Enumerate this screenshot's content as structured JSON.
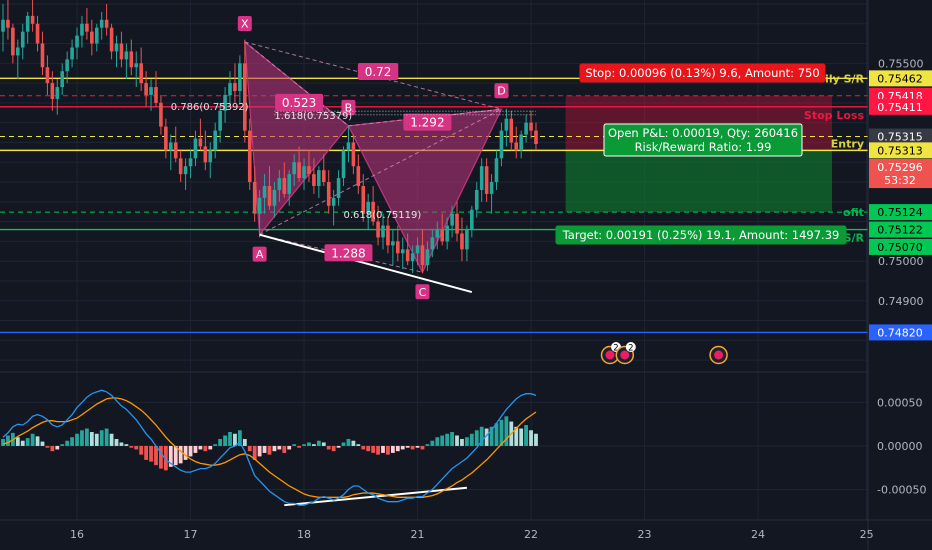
{
  "colors": {
    "background": "#131722",
    "grid": "#1f2434",
    "up_candle": "#26a69a",
    "down_candle": "#ef5350",
    "pattern_fill": "#c2357f",
    "pattern_label": "#d63384",
    "yellow_line": "#f0e442",
    "green_line": "#00c853",
    "red_zone": "#ff1744",
    "green_zone": "#0d8a2e",
    "macd_line": "#2196f3",
    "signal_line": "#ff9800",
    "axis_text": "#b2b5be",
    "blue_line": "#2962ff"
  },
  "chart_data": {
    "type": "candlestick",
    "y_axis_ticks": [
      "0.75500",
      "0.75000",
      "0.74900"
    ],
    "ylim": [
      0.7472,
      0.7566
    ],
    "price_labels": [
      {
        "text": "0.75462",
        "price": 0.75462,
        "bg": "#f0e442",
        "fg": "#000000"
      },
      {
        "text": "0.75418",
        "price": 0.75418,
        "bg": "#ff1744",
        "fg": "#ffffff"
      },
      {
        "text": "0.75411",
        "price": 0.7539,
        "bg": "#ff1744",
        "fg": "#ffffff"
      },
      {
        "text": "0.75315",
        "price": 0.75315,
        "bg": "#363a45",
        "fg": "#ffffff"
      },
      {
        "text": "0.75313",
        "price": 0.7528,
        "bg": "#f0e442",
        "fg": "#000000"
      },
      {
        "text": "0.75296",
        "price": 0.75238,
        "bg": "#ef5350",
        "fg": "#ffffff"
      },
      {
        "text": "53:32",
        "price": 0.75205,
        "bg": "#ef5350",
        "fg": "#ffffff"
      },
      {
        "text": "0.75124",
        "price": 0.75124,
        "bg": "#00c853",
        "fg": "#000000"
      },
      {
        "text": "0.75122",
        "price": 0.7508,
        "bg": "#00c853",
        "fg": "#000000"
      },
      {
        "text": "0.75070",
        "price": 0.75036,
        "bg": "#00c853",
        "fg": "#000000"
      },
      {
        "text": "0.74820",
        "price": 0.7482,
        "bg": "#2962ff",
        "fg": "#ffffff"
      }
    ],
    "x_axis_ticks": [
      {
        "label": "16",
        "index": 15
      },
      {
        "label": "17",
        "index": 38
      },
      {
        "label": "18",
        "index": 61
      },
      {
        "label": "21",
        "index": 84
      },
      {
        "label": "22",
        "index": 107
      },
      {
        "label": "23",
        "index": 130
      },
      {
        "label": "24",
        "index": 153
      },
      {
        "label": "25",
        "index": 175
      }
    ],
    "macd_axis_ticks": [
      "0.00050",
      "0.00000",
      "-0.00050"
    ],
    "macd_ylim": [
      -0.00085,
      0.00078
    ],
    "pattern_points": [
      {
        "label": "X",
        "index": 49,
        "price": 0.75554
      },
      {
        "label": "A",
        "index": 52,
        "price": 0.75067
      },
      {
        "label": "B",
        "index": 70,
        "price": 0.75342
      },
      {
        "label": "C",
        "index": 85,
        "price": 0.74972
      },
      {
        "label": "D",
        "index": 101,
        "price": 0.75384
      }
    ],
    "pattern_ratios": [
      {
        "text": "0.72",
        "index": 76,
        "price": 0.75478
      },
      {
        "text": "0.523",
        "index": 60,
        "price": 0.754
      },
      {
        "text": "1.292",
        "index": 86,
        "price": 0.7535
      },
      {
        "text": "1.288",
        "index": 70,
        "price": 0.7502
      }
    ],
    "fib_annotations": [
      {
        "text": "0.786(0.75392)",
        "index": 34,
        "price": 0.75392
      },
      {
        "text": "1.618(0.75379)",
        "index": 55,
        "price": 0.7537
      },
      {
        "text": "0.618(0.75119)",
        "index": 69,
        "price": 0.75119
      }
    ],
    "horizontal_lines": [
      {
        "price": 0.75462,
        "color": "#f0e442",
        "label": "ily S/R",
        "style": "solid"
      },
      {
        "price": 0.75418,
        "color": "#ff1744",
        "label": "",
        "style": "dash"
      },
      {
        "price": 0.7539,
        "color": "#ff1744",
        "label": "Stop Loss",
        "style": "solid"
      },
      {
        "price": 0.75315,
        "color": "#f0e442",
        "label": "",
        "style": "dash"
      },
      {
        "price": 0.7528,
        "color": "#f0e442",
        "label": "Entry",
        "style": "solid"
      },
      {
        "price": 0.75124,
        "color": "#00c853",
        "label": "ofit",
        "style": "dash"
      },
      {
        "price": 0.7508,
        "color": "#00c853",
        "label": "H1 S/R",
        "style": "solid"
      },
      {
        "price": 0.7482,
        "color": "#2962ff",
        "label": "",
        "style": "solid"
      }
    ],
    "position": {
      "stop_text": "Stop: 0.00096 (0.13%) 9.6, Amount: 750",
      "pnl_text_1": "Open P&L: 0.00019, Qty: 260416",
      "pnl_text_2": "Risk/Reward Ratio: 1.99",
      "target_text": "Target: 0.00191 (0.25%) 19.1, Amount: 1497.39"
    },
    "event_markers": [
      {
        "index": 123,
        "badge": "2"
      },
      {
        "index": 126,
        "badge": "2"
      },
      {
        "index": 145,
        "badge": ""
      }
    ],
    "candles": [
      [
        0.7558,
        0.7565,
        0.7553,
        0.7561
      ],
      [
        0.7561,
        0.7566,
        0.7556,
        0.7559
      ],
      [
        0.7559,
        0.756,
        0.755,
        0.7552
      ],
      [
        0.7552,
        0.7556,
        0.7546,
        0.7554
      ],
      [
        0.7554,
        0.756,
        0.7551,
        0.7558
      ],
      [
        0.7558,
        0.7563,
        0.7555,
        0.7562
      ],
      [
        0.7562,
        0.7566,
        0.7558,
        0.756
      ],
      [
        0.756,
        0.7562,
        0.7553,
        0.7555
      ],
      [
        0.7555,
        0.7558,
        0.7547,
        0.7549
      ],
      [
        0.7549,
        0.7552,
        0.7542,
        0.7545
      ],
      [
        0.7545,
        0.7548,
        0.7538,
        0.7541
      ],
      [
        0.7541,
        0.7546,
        0.7537,
        0.7544
      ],
      [
        0.7544,
        0.755,
        0.7542,
        0.7548
      ],
      [
        0.7548,
        0.7553,
        0.7545,
        0.7551
      ],
      [
        0.7551,
        0.7556,
        0.7549,
        0.7554
      ],
      [
        0.7554,
        0.7559,
        0.7551,
        0.7557
      ],
      [
        0.7557,
        0.7562,
        0.7554,
        0.756
      ],
      [
        0.756,
        0.7564,
        0.7556,
        0.7558
      ],
      [
        0.7558,
        0.7561,
        0.7552,
        0.7555
      ],
      [
        0.7555,
        0.756,
        0.7553,
        0.7559
      ],
      [
        0.7559,
        0.7563,
        0.7556,
        0.7561
      ],
      [
        0.7561,
        0.7565,
        0.7557,
        0.7559
      ],
      [
        0.7559,
        0.756,
        0.7551,
        0.7553
      ],
      [
        0.7553,
        0.7557,
        0.7549,
        0.7555
      ],
      [
        0.7555,
        0.7558,
        0.7549,
        0.7551
      ],
      [
        0.7551,
        0.7555,
        0.7546,
        0.7553
      ],
      [
        0.7553,
        0.7556,
        0.7547,
        0.7549
      ],
      [
        0.7549,
        0.7553,
        0.7544,
        0.755
      ],
      [
        0.755,
        0.7554,
        0.7543,
        0.7545
      ],
      [
        0.7545,
        0.7548,
        0.7539,
        0.7542
      ],
      [
        0.7542,
        0.7546,
        0.7538,
        0.7544
      ],
      [
        0.7544,
        0.7548,
        0.7539,
        0.754
      ],
      [
        0.754,
        0.7542,
        0.7532,
        0.7534
      ],
      [
        0.7534,
        0.7536,
        0.7526,
        0.7528
      ],
      [
        0.7528,
        0.7532,
        0.7523,
        0.753
      ],
      [
        0.753,
        0.7534,
        0.7525,
        0.7526
      ],
      [
        0.7526,
        0.7528,
        0.752,
        0.7522
      ],
      [
        0.7522,
        0.7526,
        0.7518,
        0.7524
      ],
      [
        0.7524,
        0.7528,
        0.7521,
        0.7526
      ],
      [
        0.7526,
        0.7533,
        0.7524,
        0.7531
      ],
      [
        0.7531,
        0.7536,
        0.7528,
        0.7529
      ],
      [
        0.7529,
        0.7533,
        0.7523,
        0.7525
      ],
      [
        0.7525,
        0.753,
        0.7521,
        0.7528
      ],
      [
        0.7528,
        0.7535,
        0.7526,
        0.7533
      ],
      [
        0.7533,
        0.754,
        0.753,
        0.7538
      ],
      [
        0.7538,
        0.7544,
        0.7535,
        0.7542
      ],
      [
        0.7542,
        0.7548,
        0.7539,
        0.7545
      ],
      [
        0.7545,
        0.755,
        0.754,
        0.7543
      ],
      [
        0.7543,
        0.7552,
        0.754,
        0.755
      ],
      [
        0.755,
        0.7556,
        0.753,
        0.7533
      ],
      [
        0.7533,
        0.7536,
        0.7518,
        0.752
      ],
      [
        0.752,
        0.7524,
        0.751,
        0.7512
      ],
      [
        0.7512,
        0.7518,
        0.7506,
        0.7516
      ],
      [
        0.7516,
        0.7522,
        0.7512,
        0.7519
      ],
      [
        0.7519,
        0.7524,
        0.7513,
        0.7514
      ],
      [
        0.7514,
        0.752,
        0.7511,
        0.7518
      ],
      [
        0.7518,
        0.7523,
        0.7515,
        0.7521
      ],
      [
        0.7521,
        0.7525,
        0.7516,
        0.7517
      ],
      [
        0.7517,
        0.7523,
        0.7514,
        0.7522
      ],
      [
        0.7522,
        0.7527,
        0.7519,
        0.7525
      ],
      [
        0.7525,
        0.7529,
        0.752,
        0.7521
      ],
      [
        0.7521,
        0.7526,
        0.7518,
        0.7524
      ],
      [
        0.7524,
        0.7528,
        0.752,
        0.7522
      ],
      [
        0.7522,
        0.7526,
        0.7517,
        0.7519
      ],
      [
        0.7519,
        0.7524,
        0.7516,
        0.7523
      ],
      [
        0.7523,
        0.7527,
        0.7519,
        0.752
      ],
      [
        0.752,
        0.7523,
        0.7512,
        0.7514
      ],
      [
        0.7514,
        0.7518,
        0.7509,
        0.7516
      ],
      [
        0.7516,
        0.7523,
        0.7514,
        0.7521
      ],
      [
        0.7521,
        0.7529,
        0.7519,
        0.7528
      ],
      [
        0.7528,
        0.7534,
        0.7525,
        0.753
      ],
      [
        0.753,
        0.7532,
        0.7522,
        0.7524
      ],
      [
        0.7524,
        0.7527,
        0.7517,
        0.7519
      ],
      [
        0.7519,
        0.7522,
        0.751,
        0.7512
      ],
      [
        0.7512,
        0.7517,
        0.7508,
        0.7515
      ],
      [
        0.7515,
        0.7519,
        0.7509,
        0.751
      ],
      [
        0.751,
        0.7514,
        0.7504,
        0.7506
      ],
      [
        0.7506,
        0.7512,
        0.7503,
        0.7509
      ],
      [
        0.7509,
        0.7511,
        0.7502,
        0.7504
      ],
      [
        0.7504,
        0.7508,
        0.7499,
        0.7505
      ],
      [
        0.7505,
        0.7509,
        0.75,
        0.7502
      ],
      [
        0.7502,
        0.7506,
        0.7498,
        0.7503
      ],
      [
        0.7503,
        0.7507,
        0.7499,
        0.75
      ],
      [
        0.75,
        0.7504,
        0.7497,
        0.7502
      ],
      [
        0.7502,
        0.7506,
        0.7499,
        0.7504
      ],
      [
        0.7504,
        0.7508,
        0.7497,
        0.7499
      ],
      [
        0.7499,
        0.7505,
        0.74975,
        0.7503
      ],
      [
        0.7503,
        0.7508,
        0.7501,
        0.7506
      ],
      [
        0.7506,
        0.751,
        0.7503,
        0.7508
      ],
      [
        0.7508,
        0.7512,
        0.7504,
        0.7505
      ],
      [
        0.7505,
        0.7511,
        0.7503,
        0.7509
      ],
      [
        0.7509,
        0.7514,
        0.7506,
        0.7512
      ],
      [
        0.7512,
        0.7515,
        0.7505,
        0.7507
      ],
      [
        0.7507,
        0.7511,
        0.75,
        0.7503
      ],
      [
        0.7503,
        0.7509,
        0.75,
        0.7508
      ],
      [
        0.7508,
        0.7514,
        0.7506,
        0.7513
      ],
      [
        0.7513,
        0.752,
        0.7511,
        0.7518
      ],
      [
        0.7518,
        0.7526,
        0.7515,
        0.7524
      ],
      [
        0.7524,
        0.7526,
        0.7515,
        0.7517
      ],
      [
        0.7517,
        0.7522,
        0.7512,
        0.752
      ],
      [
        0.752,
        0.7528,
        0.7518,
        0.7526
      ],
      [
        0.7526,
        0.7535,
        0.7524,
        0.7533
      ],
      [
        0.7533,
        0.75385,
        0.7529,
        0.7536
      ],
      [
        0.7536,
        0.7538,
        0.7528,
        0.753
      ],
      [
        0.753,
        0.7534,
        0.7526,
        0.7528
      ],
      [
        0.7528,
        0.7533,
        0.7526,
        0.7532
      ],
      [
        0.7532,
        0.7537,
        0.753,
        0.7535
      ],
      [
        0.7535,
        0.7538,
        0.7531,
        0.7533
      ],
      [
        0.7533,
        0.7535,
        0.7528,
        0.75296
      ]
    ],
    "macd_hist": [
      8e-05,
      0.00012,
      0.00015,
      0.0001,
      6e-05,
      9e-05,
      0.00014,
      0.00011,
      5e-05,
      -2e-05,
      -6e-05,
      -4e-05,
      2e-05,
      6e-05,
      0.0001,
      0.00014,
      0.00018,
      0.0002,
      0.00016,
      0.00014,
      0.00018,
      0.0002,
      0.00014,
      8e-05,
      4e-05,
      2e-05,
      -2e-05,
      -4e-05,
      -0.0001,
      -0.00016,
      -0.00018,
      -0.00022,
      -0.00026,
      -0.00028,
      -0.00024,
      -0.00022,
      -0.0002,
      -0.00016,
      -0.00012,
      -8e-05,
      -4e-05,
      -6e-05,
      -4e-05,
      2e-05,
      8e-05,
      0.00012,
      0.00016,
      0.00014,
      0.00018,
      8e-05,
      -6e-05,
      -0.00016,
      -0.00012,
      -8e-05,
      -0.0001,
      -6e-05,
      -4e-05,
      -8e-05,
      -4e-05,
      2e-05,
      -2e-05,
      2e-05,
      4e-05,
      2e-05,
      6e-05,
      4e-05,
      -4e-05,
      -6e-05,
      -2e-05,
      4e-05,
      8e-05,
      6e-05,
      2e-05,
      -4e-05,
      -6e-05,
      -8e-05,
      -0.0001,
      -8e-05,
      -0.0001,
      -8e-05,
      -6e-05,
      -4e-05,
      -2e-05,
      -4e-05,
      -2e-05,
      -4e-05,
      2e-05,
      6e-05,
      0.0001,
      0.00012,
      0.00014,
      0.00016,
      0.00012,
      8e-05,
      0.0001,
      0.00014,
      0.00018,
      0.00022,
      0.0002,
      0.00022,
      0.00026,
      0.0003,
      0.00034,
      0.00028,
      0.00022,
      0.0002,
      0.00024,
      0.00018,
      0.00014
    ],
    "macd_line": [
      0.0001,
      0.00015,
      0.00022,
      0.00025,
      0.00024,
      0.00028,
      0.00034,
      0.00036,
      0.00034,
      0.0003,
      0.00024,
      0.00022,
      0.00024,
      0.0003,
      0.00036,
      0.00044,
      0.0005,
      0.00056,
      0.0006,
      0.00062,
      0.00064,
      0.00062,
      0.00058,
      0.00052,
      0.00046,
      0.00042,
      0.00036,
      0.0003,
      0.00022,
      0.00014,
      8e-05,
      0.0,
      -8e-05,
      -0.00016,
      -0.0002,
      -0.00024,
      -0.00028,
      -0.0003,
      -0.0003,
      -0.00028,
      -0.00026,
      -0.00026,
      -0.00024,
      -0.0002,
      -0.00014,
      -8e-05,
      -2e-05,
      0.0,
      4e-05,
      -6e-05,
      -0.0002,
      -0.00034,
      -0.0004,
      -0.00046,
      -0.00052,
      -0.00056,
      -0.0006,
      -0.00064,
      -0.00066,
      -0.00066,
      -0.00068,
      -0.00068,
      -0.00066,
      -0.00064,
      -0.0006,
      -0.00058,
      -0.0006,
      -0.00062,
      -0.0006,
      -0.00056,
      -0.0005,
      -0.00046,
      -0.00046,
      -0.0005,
      -0.00054,
      -0.00056,
      -0.0006,
      -0.00062,
      -0.00064,
      -0.00064,
      -0.00064,
      -0.00062,
      -0.0006,
      -0.0006,
      -0.00058,
      -0.00058,
      -0.00054,
      -0.0005,
      -0.00044,
      -0.00038,
      -0.00032,
      -0.00026,
      -0.00022,
      -0.00018,
      -0.00014,
      -8e-05,
      -2e-05,
      6e-05,
      0.00012,
      0.00018,
      0.00026,
      0.00034,
      0.00042,
      0.00048,
      0.00054,
      0.00058,
      0.0006,
      0.0006,
      0.00058
    ],
    "signal_line": [
      2e-05,
      4e-05,
      7e-05,
      0.00011,
      0.00014,
      0.00017,
      0.00021,
      0.00024,
      0.00027,
      0.00029,
      0.00029,
      0.00028,
      0.00028,
      0.00028,
      0.0003,
      0.00032,
      0.00036,
      0.0004,
      0.00044,
      0.00048,
      0.00051,
      0.00054,
      0.00055,
      0.00055,
      0.00054,
      0.00052,
      0.00049,
      0.00045,
      0.00041,
      0.00036,
      0.0003,
      0.00024,
      0.00017,
      0.0001,
      4e-05,
      -1e-05,
      -6e-05,
      -0.00011,
      -0.00015,
      -0.00018,
      -0.0002,
      -0.00021,
      -0.00022,
      -0.00022,
      -0.00021,
      -0.00019,
      -0.00016,
      -0.00013,
      -0.0001,
      -9e-05,
      -0.00011,
      -0.00015,
      -0.0002,
      -0.00025,
      -0.0003,
      -0.00034,
      -0.00038,
      -0.00042,
      -0.00046,
      -0.00049,
      -0.00052,
      -0.00055,
      -0.00057,
      -0.00058,
      -0.00059,
      -0.00059,
      -0.00059,
      -0.00059,
      -0.00059,
      -0.00059,
      -0.00058,
      -0.00056,
      -0.00055,
      -0.00054,
      -0.00054,
      -0.00054,
      -0.00055,
      -0.00056,
      -0.00057,
      -0.00058,
      -0.00059,
      -0.00059,
      -0.00059,
      -0.00059,
      -0.00059,
      -0.00059,
      -0.00058,
      -0.00057,
      -0.00055,
      -0.00052,
      -0.00049,
      -0.00046,
      -0.00042,
      -0.00039,
      -0.00035,
      -0.00031,
      -0.00026,
      -0.00021,
      -0.00016,
      -0.0001,
      -4e-05,
      2e-05,
      8e-05,
      0.00014,
      0.0002,
      0.00026,
      0.00031,
      0.00035,
      0.00039
    ]
  }
}
